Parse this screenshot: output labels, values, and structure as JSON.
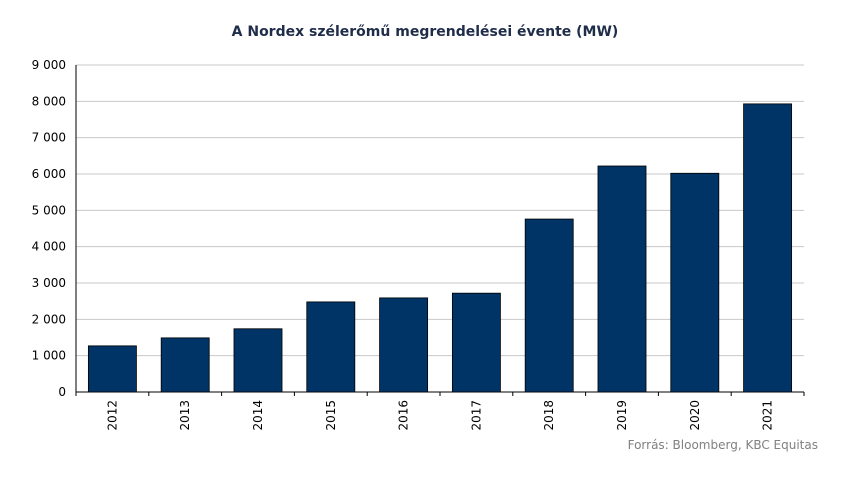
{
  "chart_data": {
    "type": "bar",
    "title": "A Nordex szélerőmű megrendelései évente (MW)",
    "categories": [
      "2012",
      "2013",
      "2014",
      "2015",
      "2016",
      "2017",
      "2018",
      "2019",
      "2020",
      "2021"
    ],
    "values": [
      1270,
      1490,
      1740,
      2480,
      2590,
      2720,
      4760,
      6220,
      6020,
      7930
    ],
    "ylim": [
      0,
      9000
    ],
    "yticks": [
      "0",
      "1 000",
      "2 000",
      "3 000",
      "4 000",
      "5 000",
      "6 000",
      "7 000",
      "8 000",
      "9 000"
    ],
    "grid": true,
    "bar_color": "#003366",
    "source": "Forrás: Bloomberg, KBC Equitas"
  }
}
